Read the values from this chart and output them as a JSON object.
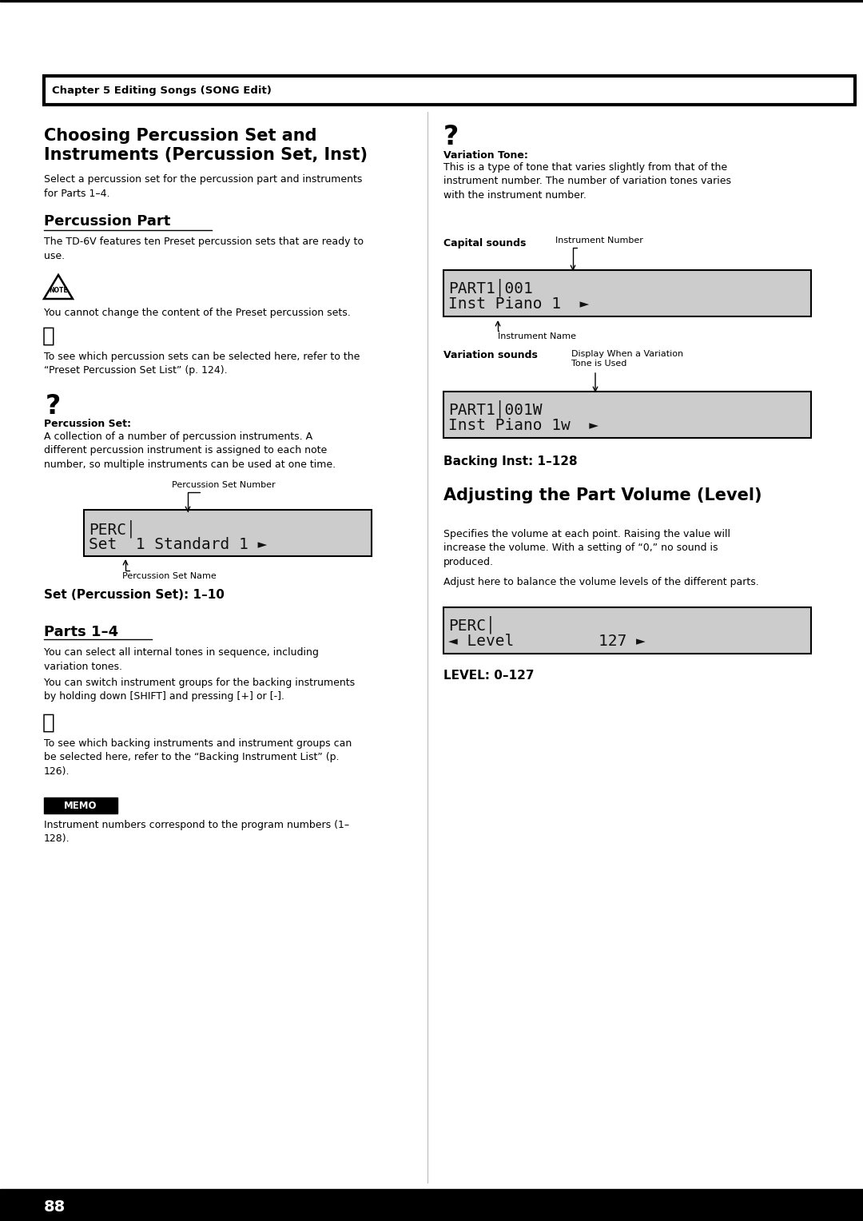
{
  "bg_color": "#ffffff",
  "chapter_box_text": "Chapter 5 Editing Songs (SONG Edit)",
  "main_title_left": "Choosing Percussion Set and\nInstruments (Percussion Set, Inst)",
  "intro_text_left": "Select a percussion set for the percussion part and instruments\nfor Parts 1–4.",
  "perc_part_heading": "Percussion Part",
  "perc_part_text": "The TD-6V features ten Preset percussion sets that are ready to\nuse.",
  "note_text": "You cannot change the content of the Preset percussion sets.",
  "ref_text_perc": "To see which percussion sets can be selected here, refer to the\n“Preset Percussion Set List” (p. 124).",
  "perc_set_bold": "Percussion Set:",
  "perc_set_text": "A collection of a number of percussion instruments. A\ndifferent percussion instrument is assigned to each note\nnumber, so multiple instruments can be used at one time.",
  "lcd1_line1": "PERC│",
  "lcd1_line2": "Set  1 Standard 1 ►",
  "lcd1_label_top": "Percussion Set Number",
  "lcd1_label_bot": "Percussion Set Name",
  "set_perc_heading": "Set (Percussion Set): 1–10",
  "parts_heading": "Parts 1–4",
  "parts_text1": "You can select all internal tones in sequence, including\nvariation tones.",
  "parts_text2": "You can switch instrument groups for the backing instruments\nby holding down [SHIFT] and pressing [+] or [-].",
  "ref_text_parts": "To see which backing instruments and instrument groups can\nbe selected here, refer to the “Backing Instrument List” (p.\n126).",
  "memo_text": "Instrument numbers correspond to the program numbers (1–\n128).",
  "variation_tone_bold": "Variation Tone:",
  "variation_tone_text": "This is a type of tone that varies slightly from that of the\ninstrument number. The number of variation tones varies\nwith the instrument number.",
  "capital_sounds_label": "Capital sounds",
  "inst_number_label": "Instrument Number",
  "lcd2_line1": "PART1│001",
  "lcd2_line2": "Inst Piano 1  ►",
  "inst_name_label": "Instrument Name",
  "variation_sounds_label": "Variation sounds",
  "display_variation_label": "Display When a Variation\nTone is Used",
  "lcd3_line1": "PART1│001W",
  "lcd3_line2": "Inst Piano 1w  ►",
  "backing_inst_heading": "Backing Inst: 1–128",
  "adj_title": "Adjusting the Part Volume (Level)",
  "adj_text1": "Specifies the volume at each point. Raising the value will\nincrease the volume. With a setting of “0,” no sound is\nproduced.",
  "adj_text2": "Adjust here to balance the volume levels of the different parts.",
  "lcd4_line1": "PERC│",
  "lcd4_line2": "◄ Level         127 ►",
  "level_heading": "LEVEL: 0–127",
  "page_number": "88"
}
